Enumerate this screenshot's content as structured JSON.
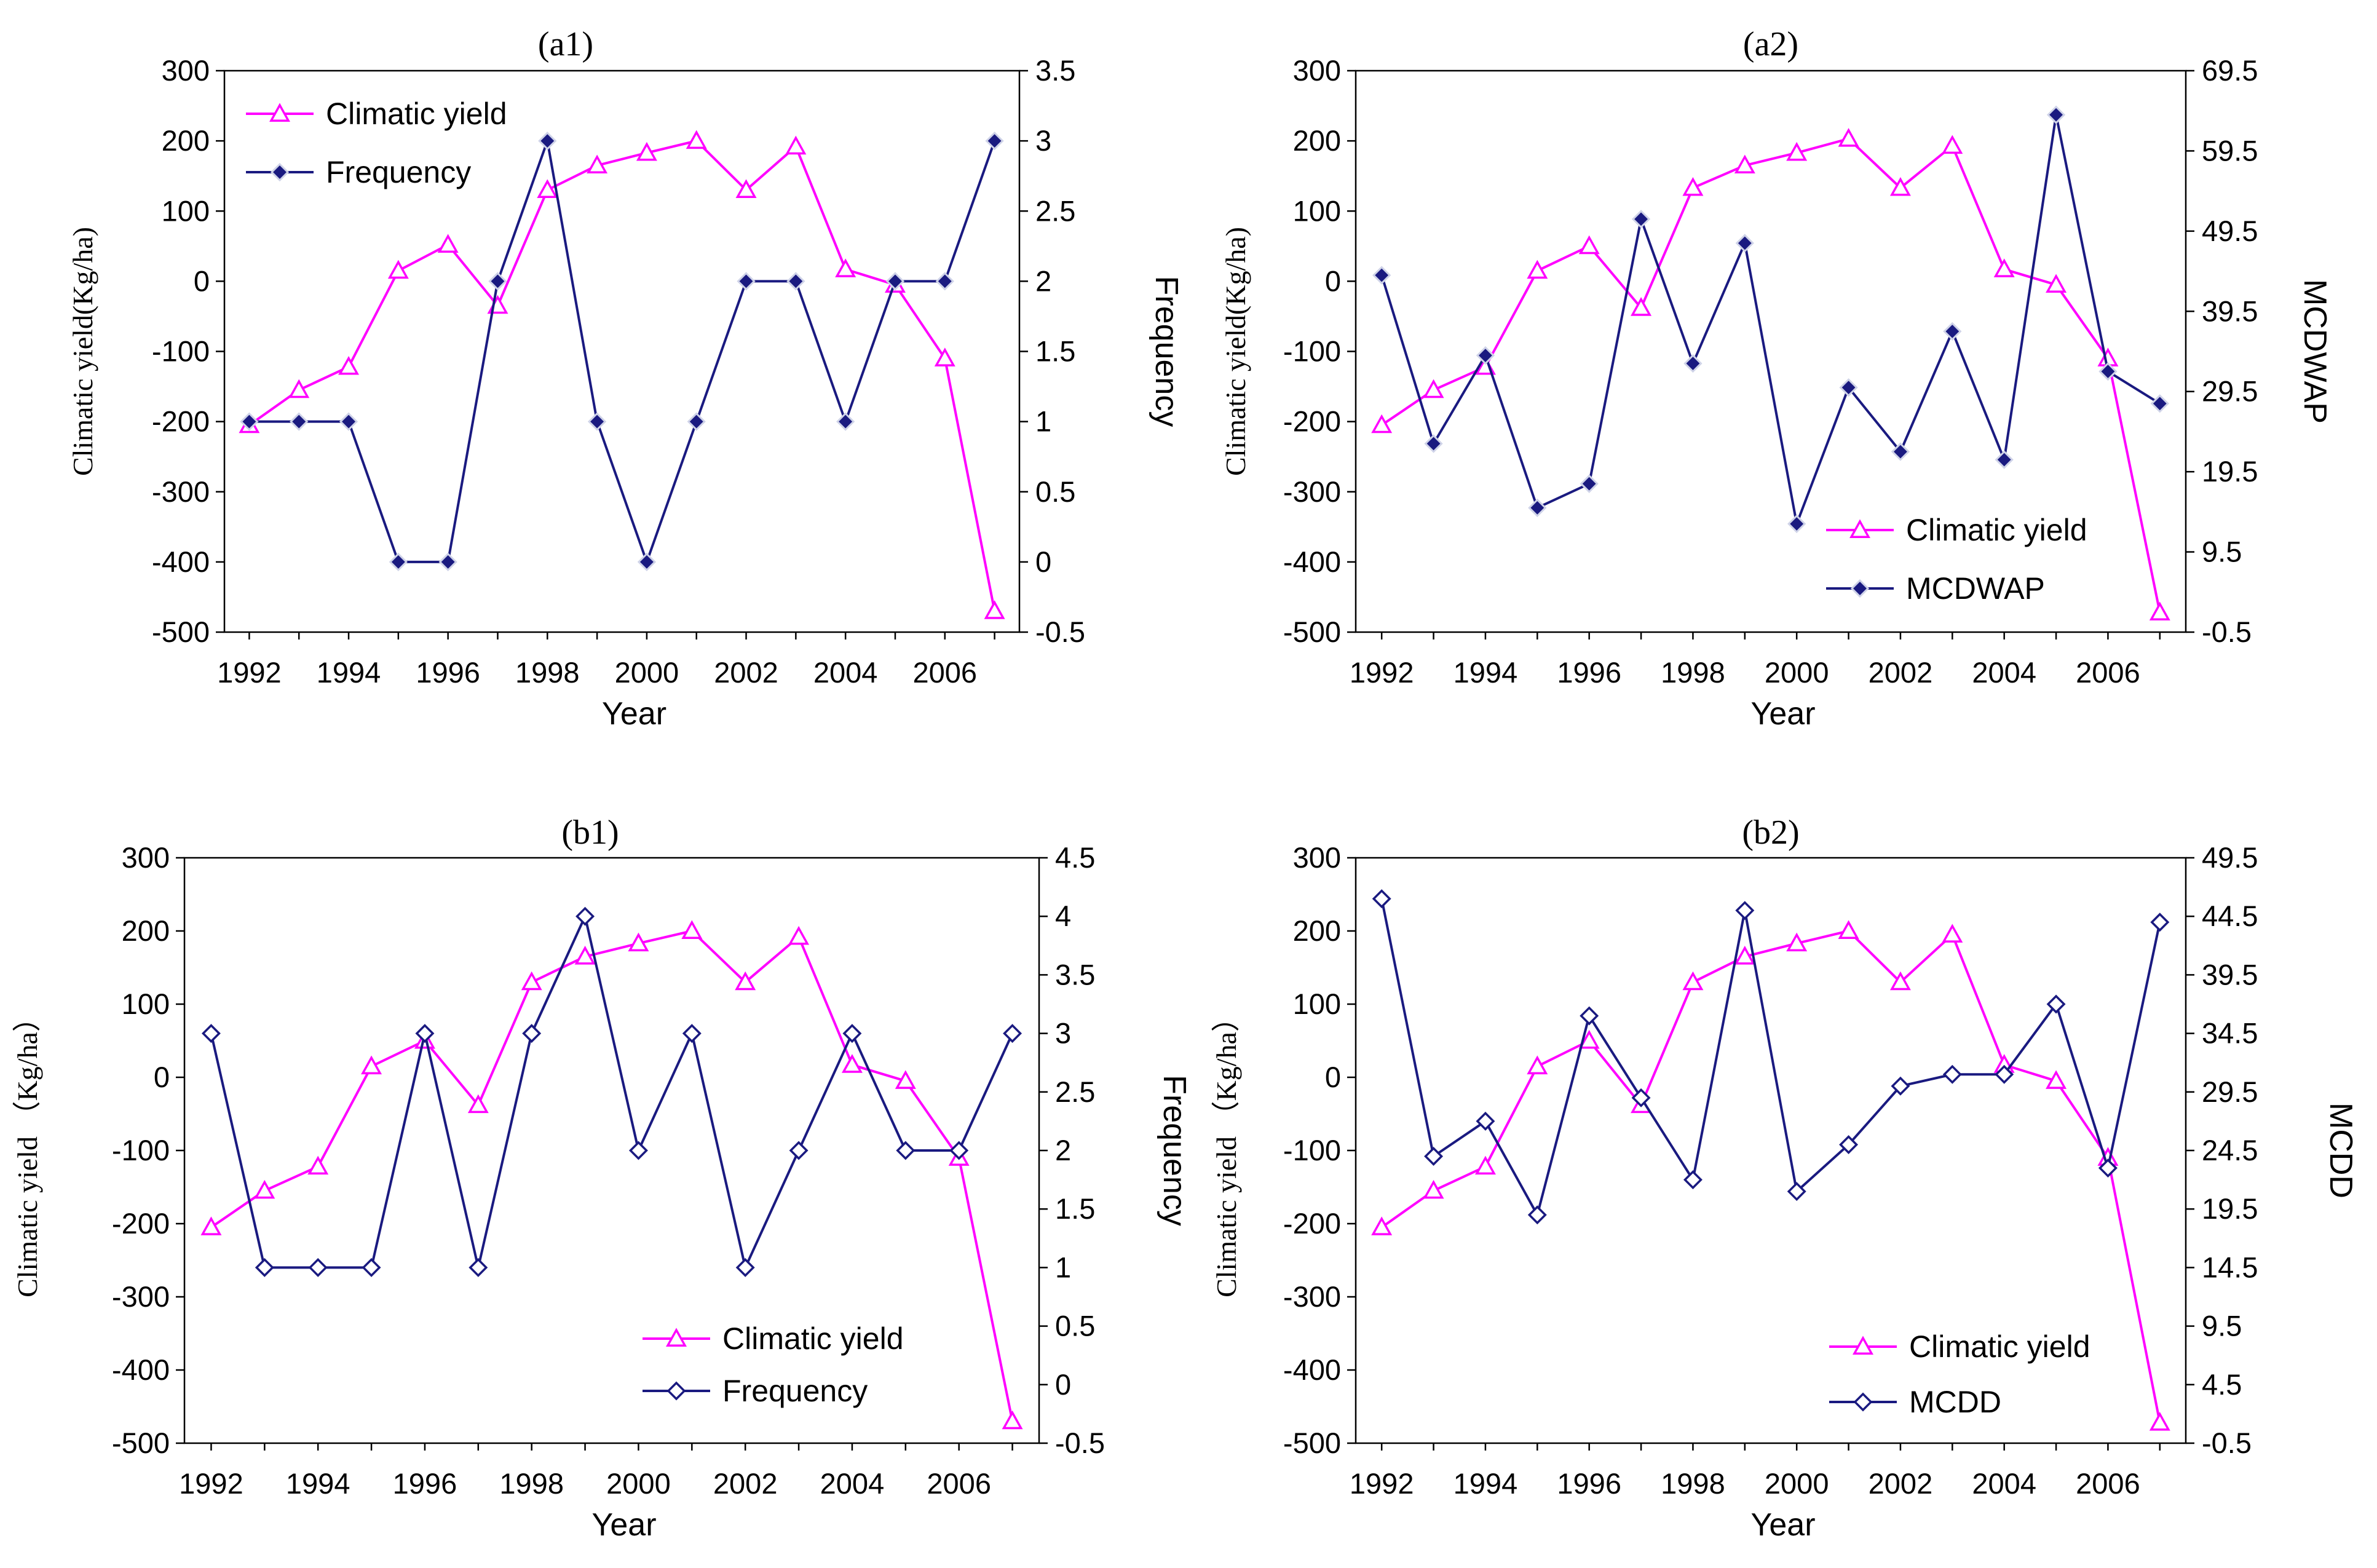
{
  "colors": {
    "yield": "#ff00ff",
    "secondary": "#1a1a80",
    "axis": "#000000"
  },
  "chart_data": [
    {
      "type": "line",
      "title": "(a1)",
      "xlabel": "Year",
      "ylabel": "Climatic yield(Kg/ha)",
      "y2label": "Frequency",
      "x_ticks": [
        "1992",
        "1994",
        "1996",
        "1998",
        "2000",
        "2002",
        "2004",
        "2006"
      ],
      "ylim": [
        -500,
        300
      ],
      "y_ticks": [
        "300",
        "200",
        "100",
        "0",
        "-100",
        "-200",
        "-300",
        "-400",
        "-500"
      ],
      "y2lim": [
        -0.5,
        3.5
      ],
      "y2_ticks": [
        "3.5",
        "3",
        "2.5",
        "2",
        "1.5",
        "1",
        "0.5",
        "0",
        "-0.5"
      ],
      "legend_position": "top-left",
      "x": [
        1992,
        1993,
        1994,
        1995,
        1996,
        1997,
        1998,
        1999,
        2000,
        2001,
        2002,
        2003,
        2004,
        2005,
        2006,
        2007
      ],
      "series": [
        {
          "name": "Climatic yield",
          "axis": "left",
          "marker": "triangle",
          "values": [
            -205,
            -155,
            -122,
            15,
            52,
            -35,
            130,
            165,
            183,
            200,
            130,
            192,
            17,
            -5,
            -110,
            -470
          ]
        },
        {
          "name": "Frequency",
          "axis": "right",
          "marker": "diamond-filled",
          "values": [
            1,
            1,
            1,
            0,
            0,
            2,
            3,
            1,
            0,
            1,
            2,
            2,
            1,
            2,
            2,
            3
          ]
        }
      ]
    },
    {
      "type": "line",
      "title": "(a2)",
      "xlabel": "Year",
      "ylabel": "Climatic yield(Kg/ha)",
      "y2label": "MCDWAP",
      "x_ticks": [
        "1992",
        "1994",
        "1996",
        "1998",
        "2000",
        "2002",
        "2004",
        "2006"
      ],
      "ylim": [
        -500,
        300
      ],
      "y_ticks": [
        "300",
        "200",
        "100",
        "0",
        "-100",
        "-200",
        "-300",
        "-400",
        "-500"
      ],
      "y2lim": [
        -0.5,
        69.5
      ],
      "y2_ticks": [
        "69.5",
        "59.5",
        "49.5",
        "39.5",
        "29.5",
        "19.5",
        "9.5",
        "-0.5"
      ],
      "legend_position": "bottom-right",
      "x": [
        1992,
        1993,
        1994,
        1995,
        1996,
        1997,
        1998,
        1999,
        2000,
        2001,
        2002,
        2003,
        2004,
        2005,
        2006,
        2007
      ],
      "series": [
        {
          "name": "Climatic yield",
          "axis": "left",
          "marker": "triangle",
          "values": [
            -205,
            -155,
            -122,
            15,
            50,
            -38,
            133,
            165,
            183,
            203,
            133,
            193,
            17,
            -5,
            -110,
            -472
          ]
        },
        {
          "name": "MCDWAP",
          "axis": "right",
          "marker": "diamond-filled",
          "values": [
            44,
            23,
            34,
            15,
            18,
            51,
            33,
            48,
            13,
            30,
            22,
            37,
            21,
            64,
            32,
            28
          ]
        }
      ]
    },
    {
      "type": "line",
      "title": "(b1)",
      "xlabel": "Year",
      "ylabel": "Climatic yield （Kg/ha）",
      "y2label": "Frequency",
      "x_ticks": [
        "1992",
        "1994",
        "1996",
        "1998",
        "2000",
        "2002",
        "2004",
        "2006"
      ],
      "ylim": [
        -500,
        300
      ],
      "y_ticks": [
        "300",
        "200",
        "100",
        "0",
        "-100",
        "-200",
        "-300",
        "-400",
        "-500"
      ],
      "y2lim": [
        -0.5,
        4.5
      ],
      "y2_ticks": [
        "4.5",
        "4",
        "3.5",
        "3",
        "2.5",
        "2",
        "1.5",
        "1",
        "0.5",
        "0",
        "-0.5"
      ],
      "legend_position": "bottom-right",
      "x": [
        1992,
        1993,
        1994,
        1995,
        1996,
        1997,
        1998,
        1999,
        2000,
        2001,
        2002,
        2003,
        2004,
        2005,
        2006,
        2007
      ],
      "series": [
        {
          "name": "Climatic yield",
          "axis": "left",
          "marker": "triangle",
          "values": [
            -205,
            -155,
            -122,
            15,
            50,
            -38,
            130,
            165,
            183,
            200,
            130,
            192,
            17,
            -5,
            -110,
            -470
          ]
        },
        {
          "name": "Frequency",
          "axis": "right",
          "marker": "diamond-open",
          "values": [
            3,
            1,
            1,
            1,
            3,
            1,
            3,
            4,
            2,
            3,
            1,
            2,
            3,
            2,
            2,
            3
          ]
        }
      ]
    },
    {
      "type": "line",
      "title": "(b2)",
      "xlabel": "Year",
      "ylabel": "Climatic yield （Kg/ha）",
      "y2label": "MCDD",
      "x_ticks": [
        "1992",
        "1994",
        "1996",
        "1998",
        "2000",
        "2002",
        "2004",
        "2006"
      ],
      "ylim": [
        -500,
        300
      ],
      "y_ticks": [
        "300",
        "200",
        "100",
        "0",
        "-100",
        "-200",
        "-300",
        "-400",
        "-500"
      ],
      "y2lim": [
        -0.5,
        49.5
      ],
      "y2_ticks": [
        "49.5",
        "44.5",
        "39.5",
        "34.5",
        "29.5",
        "24.5",
        "19.5",
        "14.5",
        "9.5",
        "4.5",
        "-0.5"
      ],
      "legend_position": "bottom-right",
      "x": [
        1992,
        1993,
        1994,
        1995,
        1996,
        1997,
        1998,
        1999,
        2000,
        2001,
        2002,
        2003,
        2004,
        2005,
        2006,
        2007
      ],
      "series": [
        {
          "name": "Climatic yield",
          "axis": "left",
          "marker": "triangle",
          "values": [
            -205,
            -155,
            -122,
            15,
            50,
            -38,
            130,
            165,
            183,
            200,
            130,
            195,
            17,
            -5,
            -110,
            -472
          ]
        },
        {
          "name": "MCDD",
          "axis": "right",
          "marker": "diamond-open",
          "values": [
            46,
            24,
            27,
            19,
            36,
            29,
            22,
            45,
            21,
            25,
            30,
            31,
            31,
            37,
            23,
            44
          ]
        }
      ]
    }
  ]
}
